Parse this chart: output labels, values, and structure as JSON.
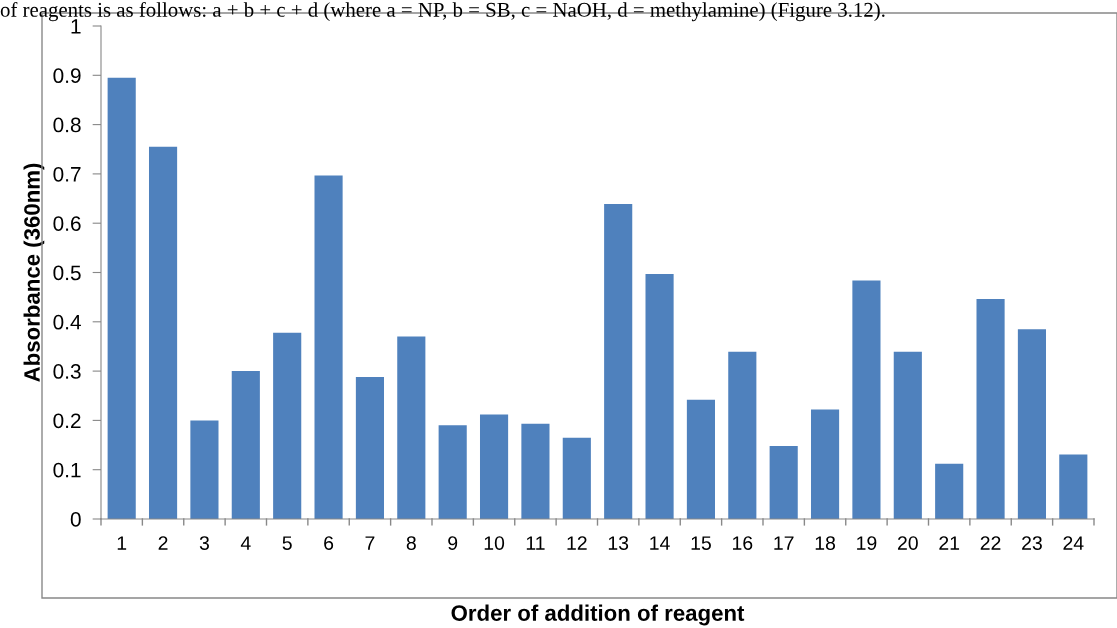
{
  "chart_data": {
    "type": "bar",
    "xlabel": "Order of addition of reagent",
    "ylabel": "Absorbance (360nm)",
    "annotations": [
      "of reagents is as follows: a + b + c + d (where a = NP, b = SB, c = NaOH, d = methylamine) (Figure 3.12)."
    ],
    "categories": [
      "1",
      "2",
      "3",
      "4",
      "5",
      "6",
      "7",
      "8",
      "9",
      "10",
      "11",
      "12",
      "13",
      "14",
      "15",
      "16",
      "17",
      "18",
      "19",
      "20",
      "21",
      "22",
      "23",
      "24"
    ],
    "values": [
      0.895,
      0.755,
      0.2,
      0.3,
      0.378,
      0.697,
      0.288,
      0.37,
      0.19,
      0.212,
      0.193,
      0.165,
      0.639,
      0.497,
      0.242,
      0.339,
      0.148,
      0.222,
      0.484,
      0.339,
      0.112,
      0.446,
      0.385,
      0.131
    ],
    "color": "#4f81bd",
    "ylim": [
      0,
      1
    ],
    "yticks": [
      0,
      {
        "value": 0.1,
        "label": "0.1"
      },
      {
        "value": 0.2,
        "label": "0.2"
      },
      {
        "value": 0.3,
        "label": "0.3"
      },
      {
        "value": 0.4,
        "label": "0.4"
      },
      {
        "value": 0.5,
        "label": "0.5"
      },
      {
        "value": 0.6,
        "label": "0.6"
      },
      {
        "value": 0.7,
        "label": "0.7"
      },
      {
        "value": 0.8,
        "label": "0.8"
      },
      {
        "value": 0.9,
        "label": "0.9"
      },
      1
    ],
    "grid": false,
    "legend": false
  }
}
